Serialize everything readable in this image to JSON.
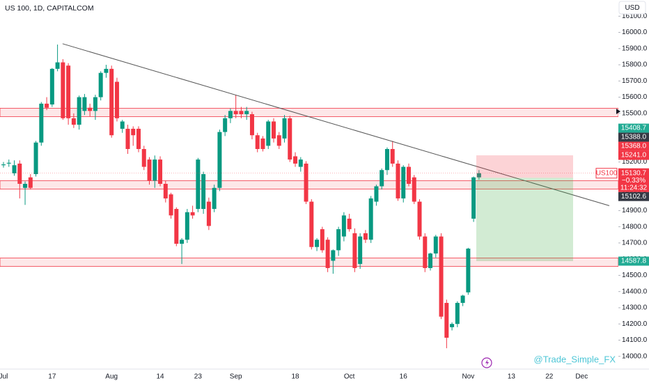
{
  "chart_data": {
    "type": "candlestick",
    "title": "US 100, 1D, CAPITALCOM",
    "currency": "USD",
    "watermark": "@Trade_Simple_FX",
    "up_color": "#089981",
    "down_color": "#f23645",
    "categories": [
      "Jul",
      null,
      null,
      null,
      null,
      null,
      null,
      null,
      null,
      "17",
      null,
      null,
      null,
      null,
      null,
      null,
      null,
      null,
      null,
      null,
      "Aug",
      null,
      null,
      null,
      null,
      null,
      null,
      null,
      null,
      "14",
      null,
      null,
      null,
      null,
      null,
      null,
      "23",
      null,
      null,
      null,
      null,
      null,
      null,
      "Sep",
      null,
      null,
      null,
      null,
      null,
      null,
      null,
      null,
      null,
      null,
      "18",
      null,
      null,
      null,
      null,
      null,
      null,
      null,
      null,
      null,
      "Oct",
      null,
      null,
      null,
      null,
      null,
      null,
      null,
      null,
      null,
      "16",
      null,
      null,
      null,
      null,
      null,
      null,
      null,
      null,
      null,
      null,
      null,
      "Nov",
      null,
      null,
      null,
      null,
      null,
      null,
      null,
      "13",
      null,
      null,
      null,
      null,
      null,
      null,
      "22",
      null,
      null,
      null,
      null,
      null,
      "Dec"
    ],
    "open": [
      15180,
      15190,
      15130,
      15190,
      15040,
      15105,
      15125,
      15320,
      15560,
      15555,
      15775,
      15815,
      15795,
      15470,
      15430,
      15515,
      15535,
      15515,
      15600,
      15750,
      15775,
      15695,
      15405,
      15405,
      15405,
      15405,
      15280,
      15215,
      15085,
      15215,
      15065,
      15000,
      14910,
      14695,
      14720,
      14890,
      14910,
      14910,
      14955,
      14910,
      15040,
      15385,
      15470,
      15515,
      15515,
      15495,
      15495,
      15365,
      15345,
      15300,
      15450,
      15365,
      15345,
      15470,
      15235,
      15170,
      15190,
      14955,
      14675,
      14785,
      14720,
      14590,
      14655,
      14740,
      14850,
      14760,
      14570,
      14760,
      14720,
      14955,
      15050,
      15150,
      15280,
      15190,
      14975,
      15170,
      15105,
      14955,
      14740,
      14545,
      14635,
      14740,
      14330,
      14180,
      14200,
      14330,
      14395,
      14850,
      15105,
      null,
      null,
      null,
      null,
      null,
      null,
      null,
      null,
      null,
      null,
      null,
      null,
      null,
      null,
      null,
      null,
      null,
      null,
      null
    ],
    "high": [
      15200,
      15215,
      15210,
      15210,
      15080,
      15125,
      15330,
      15570,
      15600,
      15780,
      15925,
      15835,
      15810,
      15500,
      15610,
      15620,
      15560,
      15615,
      15760,
      15800,
      15795,
      15720,
      15460,
      15430,
      15420,
      15420,
      15300,
      15230,
      15240,
      15235,
      15085,
      15010,
      14920,
      14730,
      14910,
      14930,
      15225,
      15140,
      14980,
      15060,
      15400,
      15490,
      15530,
      15615,
      15540,
      15540,
      15510,
      15380,
      15360,
      15460,
      15470,
      15385,
      15490,
      15485,
      15260,
      15230,
      15205,
      14970,
      14730,
      14800,
      14735,
      14660,
      14800,
      14890,
      14880,
      14790,
      14760,
      14780,
      14990,
      15060,
      15160,
      15290,
      15330,
      15210,
      15180,
      15190,
      15120,
      14970,
      14760,
      14640,
      14750,
      14760,
      14350,
      14210,
      14340,
      14380,
      14670,
      15110,
      15150,
      null,
      null,
      null,
      null,
      null,
      null,
      null,
      null,
      null,
      null,
      null,
      null,
      null,
      null,
      null,
      null,
      null,
      null,
      null
    ],
    "low": [
      15165,
      15170,
      15115,
      14975,
      14935,
      15030,
      15110,
      15300,
      15520,
      15540,
      15760,
      15460,
      15430,
      15410,
      15400,
      15490,
      15480,
      15460,
      15580,
      15720,
      15350,
      15450,
      15380,
      15250,
      15300,
      15260,
      15150,
      15060,
      15040,
      15050,
      14950,
      14850,
      14680,
      14570,
      14700,
      14850,
      14890,
      14880,
      14780,
      14890,
      15020,
      15360,
      15440,
      15470,
      15470,
      15460,
      15340,
      15260,
      15265,
      15280,
      15320,
      15280,
      15320,
      15200,
      15170,
      15140,
      14940,
      14660,
      14650,
      14640,
      14520,
      14510,
      14620,
      14710,
      14770,
      14520,
      14540,
      14700,
      14700,
      14930,
      15030,
      15120,
      15170,
      14960,
      14950,
      15050,
      14940,
      14720,
      14520,
      14530,
      14610,
      14230,
      14050,
      14160,
      14180,
      14310,
      14380,
      14830,
      15090,
      null,
      null,
      null,
      null,
      null,
      null,
      null,
      null,
      null,
      null,
      null,
      null,
      null,
      null,
      null,
      null,
      null,
      null,
      null
    ],
    "close": [
      15185,
      15195,
      15180,
      15065,
      15065,
      15040,
      15320,
      15560,
      15535,
      15775,
      15815,
      15470,
      15470,
      15430,
      15600,
      15600,
      15515,
      15600,
      15750,
      15775,
      15365,
      15470,
      15450,
      15280,
      15365,
      15280,
      15170,
      15085,
      15215,
      15065,
      14975,
      14870,
      14695,
      14720,
      14890,
      14870,
      15215,
      15125,
      14805,
      15040,
      15385,
      15470,
      15515,
      15495,
      15495,
      15515,
      15365,
      15280,
      15280,
      15450,
      15345,
      15300,
      15470,
      15215,
      15190,
      15215,
      14955,
      14675,
      14720,
      14655,
      14545,
      14655,
      14785,
      14870,
      14785,
      14545,
      14740,
      14720,
      14975,
      15050,
      15150,
      15280,
      15190,
      14975,
      15170,
      15065,
      14955,
      14740,
      14545,
      14635,
      14740,
      14245,
      14115,
      14200,
      14330,
      14375,
      14665,
      15105,
      15130.7,
      null,
      null,
      null,
      null,
      null,
      null,
      null,
      null,
      null,
      null,
      null,
      null,
      null,
      null,
      null,
      null,
      null,
      null,
      null
    ],
    "ylim": [
      13930,
      16200
    ],
    "yticks": [
      {
        "value": 14000,
        "label": "14000.0"
      },
      {
        "value": 14100,
        "label": "14100.0"
      },
      {
        "value": 14200,
        "label": "14200.0"
      },
      {
        "value": 14300,
        "label": "14300.0"
      },
      {
        "value": 14400,
        "label": "14400.0"
      },
      {
        "value": 14500,
        "label": "14500.0"
      },
      {
        "value": 14600,
        "label": "14600.0"
      },
      {
        "value": 14700,
        "label": "14700.0"
      },
      {
        "value": 14800,
        "label": "14800.0"
      },
      {
        "value": 14900,
        "label": "14900.0"
      },
      {
        "value": 15000,
        "label": "15000.0"
      },
      {
        "value": 15100,
        "label": "15100.0"
      },
      {
        "value": 15200,
        "label": "15200.0"
      },
      {
        "value": 15300,
        "label": "15300.0"
      },
      {
        "value": 15400,
        "label": "15400.0"
      },
      {
        "value": 15500,
        "label": "15500.0"
      },
      {
        "value": 15600,
        "label": "15600.0"
      },
      {
        "value": 15700,
        "label": "15700.0"
      },
      {
        "value": 15800,
        "label": "15800.0"
      },
      {
        "value": 15900,
        "label": "15900.0"
      },
      {
        "value": 16000,
        "label": "16000.0"
      },
      {
        "value": 16100,
        "label": "16100.0"
      }
    ],
    "zones": [
      [
        15532,
        15480
      ],
      [
        15084,
        15033
      ],
      [
        14607,
        14555
      ]
    ],
    "trendline": {
      "from": 15930,
      "to": 14930
    },
    "price_labels": [
      {
        "value": 15408.7,
        "label": "15408.7",
        "color": "#22ab94"
      },
      {
        "value": 15388,
        "label": "15388.0",
        "color": "#363a45"
      },
      {
        "value": 15368,
        "label": "15368.0",
        "color": "#f23645"
      },
      {
        "value": 15241,
        "label": "15241.0",
        "color": "#f23645"
      },
      {
        "value": 15102.6,
        "label": "15102.6",
        "color": "#363a45"
      },
      {
        "value": 14587.8,
        "label": "14587.8",
        "color": "#22ab94"
      }
    ],
    "last": {
      "symbol": "US100",
      "label": "15130.7",
      "change": "−0.33%",
      "countdown": "11:24:32",
      "color": "#f23645"
    }
  }
}
